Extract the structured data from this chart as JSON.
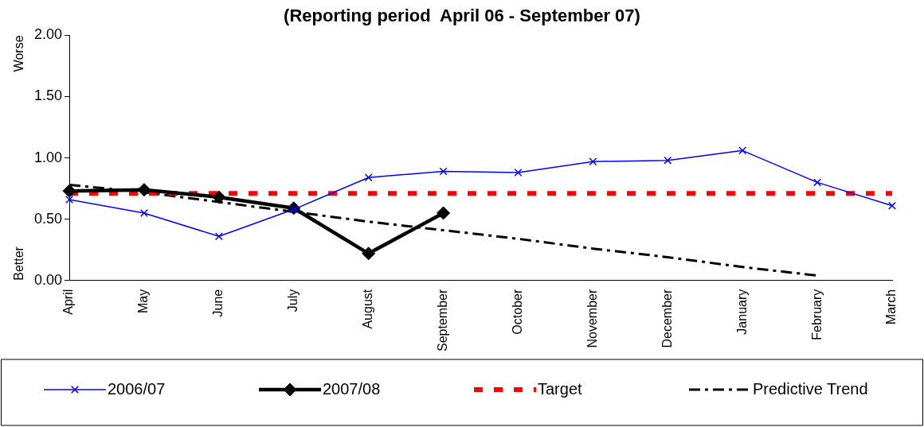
{
  "chart_data": {
    "type": "line",
    "title": "(Reporting period  April 06 - September 07)",
    "categories": [
      "April",
      "May",
      "June",
      "July",
      "August",
      "September",
      "October",
      "November",
      "December",
      "January",
      "February",
      "March"
    ],
    "series": [
      {
        "name": "2006/07",
        "color": "#0000ff",
        "marker": "cross",
        "line_style": "solid",
        "values": [
          0.66,
          0.55,
          0.36,
          0.58,
          0.84,
          0.89,
          0.88,
          0.97,
          0.98,
          1.06,
          0.8,
          0.61
        ]
      },
      {
        "name": "2007/08",
        "color": "#000000",
        "marker": "diamond",
        "line_style": "solid",
        "values": [
          0.73,
          0.74,
          0.68,
          0.59,
          0.22,
          0.55,
          null,
          null,
          null,
          null,
          null,
          null
        ]
      },
      {
        "name": "Target",
        "color": "#ff0000",
        "marker": "none",
        "line_style": "dotted",
        "values": [
          0.71,
          0.71,
          0.71,
          0.71,
          0.71,
          0.71,
          0.71,
          0.71,
          0.71,
          0.71,
          0.71,
          0.71
        ]
      },
      {
        "name": "Predictive Trend",
        "color": "#000000",
        "marker": "none",
        "line_style": "dashed",
        "values": [
          0.78,
          0.72,
          0.64,
          0.56,
          0.48,
          0.41,
          0.34,
          0.26,
          0.19,
          0.11,
          0.04,
          null
        ]
      }
    ],
    "ylim": [
      0,
      2
    ],
    "yticks": [
      {
        "value": 0,
        "label": "0.00"
      },
      {
        "value": 0.5,
        "label": "0.50"
      },
      {
        "value": 1,
        "label": "1.00"
      },
      {
        "value": 1.5,
        "label": "1.50"
      },
      {
        "value": 2,
        "label": "2.00"
      }
    ],
    "annotations": [
      "Worse",
      "Better"
    ],
    "grid": false,
    "legend": "bottom"
  }
}
